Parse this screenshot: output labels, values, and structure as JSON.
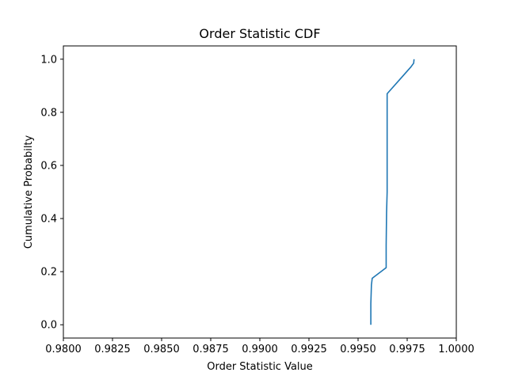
{
  "chart_data": {
    "type": "line",
    "title": "Order Statistic CDF",
    "xlabel": "Order Statistic Value",
    "ylabel": "Cumulative Probabilty",
    "xlim": [
      0.98,
      1.0
    ],
    "ylim": [
      -0.05,
      1.05
    ],
    "xticks": [
      0.98,
      0.9825,
      0.985,
      0.9875,
      0.99,
      0.9925,
      0.995,
      0.9975,
      1.0
    ],
    "xtick_labels": [
      "0.9800",
      "0.9825",
      "0.9850",
      "0.9875",
      "0.9900",
      "0.9925",
      "0.9950",
      "0.9975",
      "1.0000"
    ],
    "yticks": [
      0.0,
      0.2,
      0.4,
      0.6,
      0.8,
      1.0
    ],
    "ytick_labels": [
      "0.0",
      "0.2",
      "0.4",
      "0.6",
      "0.8",
      "1.0"
    ],
    "grid": false,
    "series": [
      {
        "color": "#1f77b4",
        "x": [
          0.99565,
          0.99565,
          0.99568,
          0.99572,
          0.99643,
          0.99643,
          0.99645,
          0.99648,
          0.99648,
          0.99768,
          0.99783,
          0.99785
        ],
        "y": [
          0.0,
          0.08,
          0.15,
          0.175,
          0.215,
          0.3,
          0.42,
          0.5,
          0.87,
          0.97,
          0.985,
          1.0
        ]
      }
    ]
  }
}
